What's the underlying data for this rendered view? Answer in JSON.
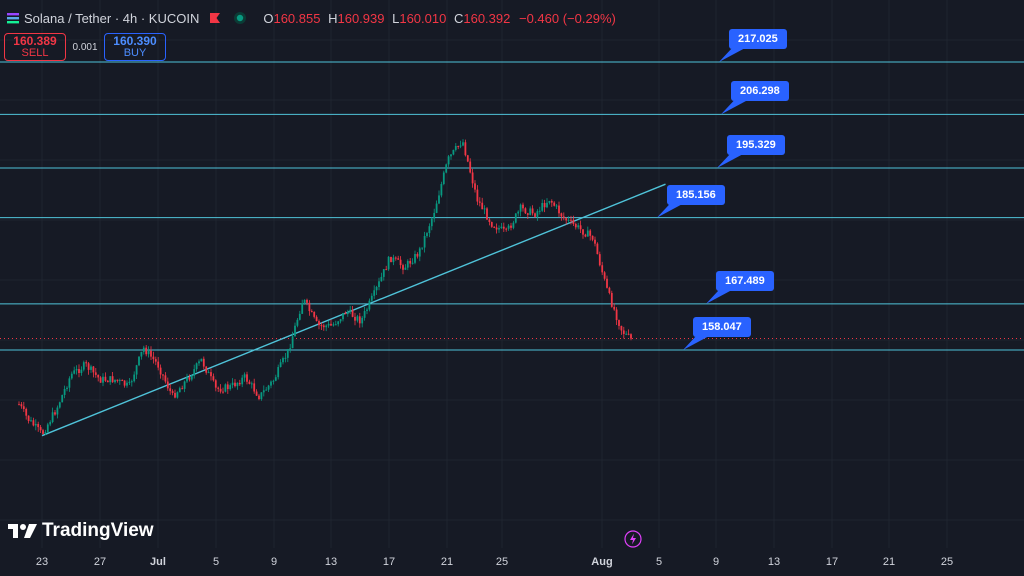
{
  "header": {
    "symbol": "Solana / Tether · 4h · KUCOIN",
    "ohlc": [
      {
        "k": "O",
        "v": "160.855"
      },
      {
        "k": "H",
        "v": "160.939"
      },
      {
        "k": "L",
        "v": "160.010"
      },
      {
        "k": "C",
        "v": "160.392"
      },
      {
        "k": "",
        "v": "−0.460 (−0.29%)"
      }
    ],
    "colors": {
      "down": "#f23645",
      "up": "#089981"
    }
  },
  "trade": {
    "sell_price": "160.389",
    "sell_label": "SELL",
    "spread": "0.001",
    "buy_price": "160.390",
    "buy_label": "BUY"
  },
  "watermark": "TradingView",
  "chart_data": {
    "type": "line",
    "title": "Solana / Tether · 4h · KUCOIN",
    "x_tick_labels": [
      "23",
      "27",
      "Jul",
      "5",
      "9",
      "13",
      "17",
      "21",
      "25",
      "Aug",
      "5",
      "9",
      "13",
      "17",
      "21",
      "25"
    ],
    "ylim": [
      140,
      227
    ],
    "horizontal_levels": [
      217.025,
      206.298,
      195.329,
      185.156,
      167.489,
      158.047
    ],
    "level_labels": [
      "217.025",
      "206.298",
      "195.329",
      "185.156",
      "167.489",
      "158.047"
    ],
    "trendline": {
      "start": {
        "x": "Jun 23",
        "y": 140.5
      },
      "end": {
        "x": "Aug 5",
        "y": 192.0
      }
    },
    "current_price": 160.392,
    "price_path": [
      {
        "x": "Jun 21",
        "y": 149
      },
      {
        "x": "Jun 22",
        "y": 144
      },
      {
        "x": "Jun 23",
        "y": 140.8
      },
      {
        "x": "Jun 24",
        "y": 146
      },
      {
        "x": "Jun 25",
        "y": 153
      },
      {
        "x": "Jun 26",
        "y": 155
      },
      {
        "x": "Jun 27",
        "y": 152
      },
      {
        "x": "Jun 28",
        "y": 152
      },
      {
        "x": "Jun 29",
        "y": 150.5
      },
      {
        "x": "Jun 30",
        "y": 158.5
      },
      {
        "x": "Jul 1",
        "y": 155
      },
      {
        "x": "Jul 2",
        "y": 148.5
      },
      {
        "x": "Jul 3",
        "y": 152
      },
      {
        "x": "Jul 4",
        "y": 156
      },
      {
        "x": "Jul 5",
        "y": 150
      },
      {
        "x": "Jul 6",
        "y": 150.5
      },
      {
        "x": "Jul 7",
        "y": 152.5
      },
      {
        "x": "Jul 8",
        "y": 148.5
      },
      {
        "x": "Jul 9",
        "y": 152
      },
      {
        "x": "Jul 10",
        "y": 158
      },
      {
        "x": "Jul 11",
        "y": 168.5
      },
      {
        "x": "Jul 12",
        "y": 163
      },
      {
        "x": "Jul 13",
        "y": 163
      },
      {
        "x": "Jul 14",
        "y": 166
      },
      {
        "x": "Jul 15",
        "y": 164
      },
      {
        "x": "Jul 16",
        "y": 170
      },
      {
        "x": "Jul 17",
        "y": 177
      },
      {
        "x": "Jul 18",
        "y": 175
      },
      {
        "x": "Jul 19",
        "y": 178
      },
      {
        "x": "Jul 20",
        "y": 186
      },
      {
        "x": "Jul 21",
        "y": 197
      },
      {
        "x": "Jul 22",
        "y": 201
      },
      {
        "x": "Jul 23",
        "y": 189
      },
      {
        "x": "Jul 24",
        "y": 184
      },
      {
        "x": "Jul 25",
        "y": 182
      },
      {
        "x": "Jul 26",
        "y": 187
      },
      {
        "x": "Jul 27",
        "y": 186
      },
      {
        "x": "Jul 28",
        "y": 189
      },
      {
        "x": "Jul 29",
        "y": 185
      },
      {
        "x": "Jul 30",
        "y": 183
      },
      {
        "x": "Jul 31",
        "y": 181
      },
      {
        "x": "Aug 1",
        "y": 170
      },
      {
        "x": "Aug 2",
        "y": 162
      },
      {
        "x": "Aug 3",
        "y": 159
      },
      {
        "x": "Aug 3",
        "y": 160.4
      }
    ],
    "grid": true,
    "background": "#161a25",
    "level_color": "#4fc3d9",
    "callout_color": "#2962ff"
  }
}
